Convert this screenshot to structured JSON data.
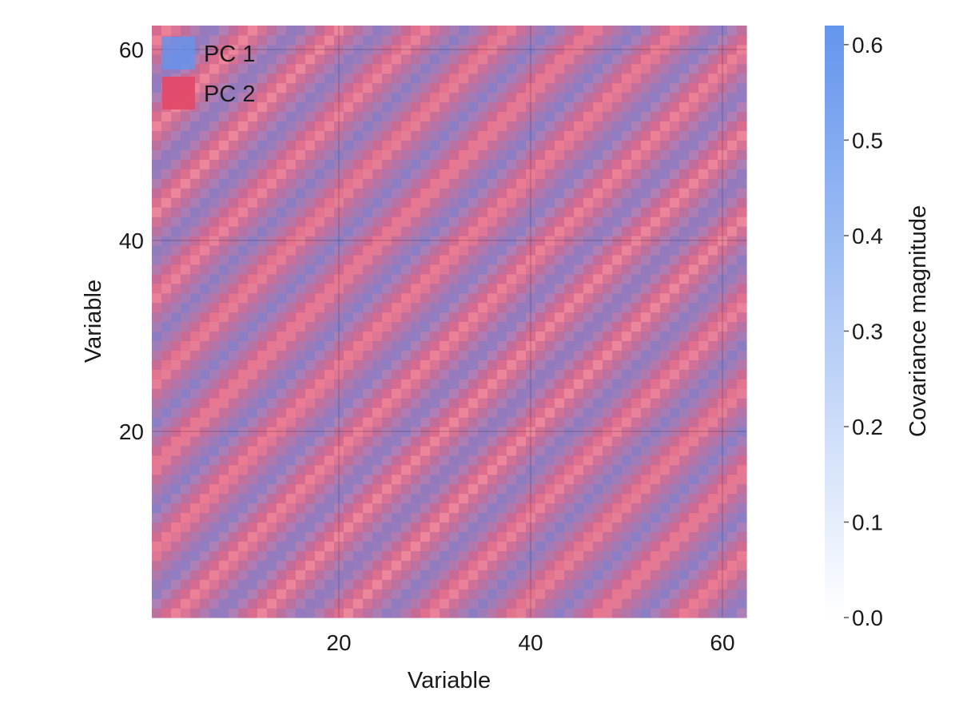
{
  "chart_data": {
    "type": "heatmap",
    "title": "",
    "xlabel": "Variable",
    "ylabel": "Variable",
    "grid_size": 62,
    "xlim": [
      0.5,
      62.5
    ],
    "ylim": [
      0.5,
      62.5
    ],
    "x_ticks": [
      20,
      40,
      60
    ],
    "y_ticks": [
      20,
      40,
      60
    ],
    "grid": true,
    "legend_position": "top-left",
    "series": [
      {
        "name": "PC 1",
        "color": "#6495ed",
        "components": [
          {
            "a": 0.62,
            "k": 3.5,
            "phase": 0.84
          }
        ]
      },
      {
        "name": "PC 2",
        "color": "#e34a6a",
        "components": [
          {
            "a": 0.575,
            "k": 3.5,
            "phase": 0
          },
          {
            "a": 0.575,
            "k": 3.5,
            "phase": 1.57
          }
        ]
      }
    ],
    "colorbar": {
      "label": "Covariance magnitude",
      "range": [
        0.0,
        0.62
      ],
      "ticks": [
        0.0,
        0.1,
        0.2,
        0.3,
        0.4,
        0.5,
        0.6
      ],
      "tick_labels": [
        "0.0",
        "0.1",
        "0.2",
        "0.3",
        "0.4",
        "0.5",
        "0.6"
      ],
      "color_low": "#ffffff",
      "color_high": "#6495ed"
    }
  }
}
